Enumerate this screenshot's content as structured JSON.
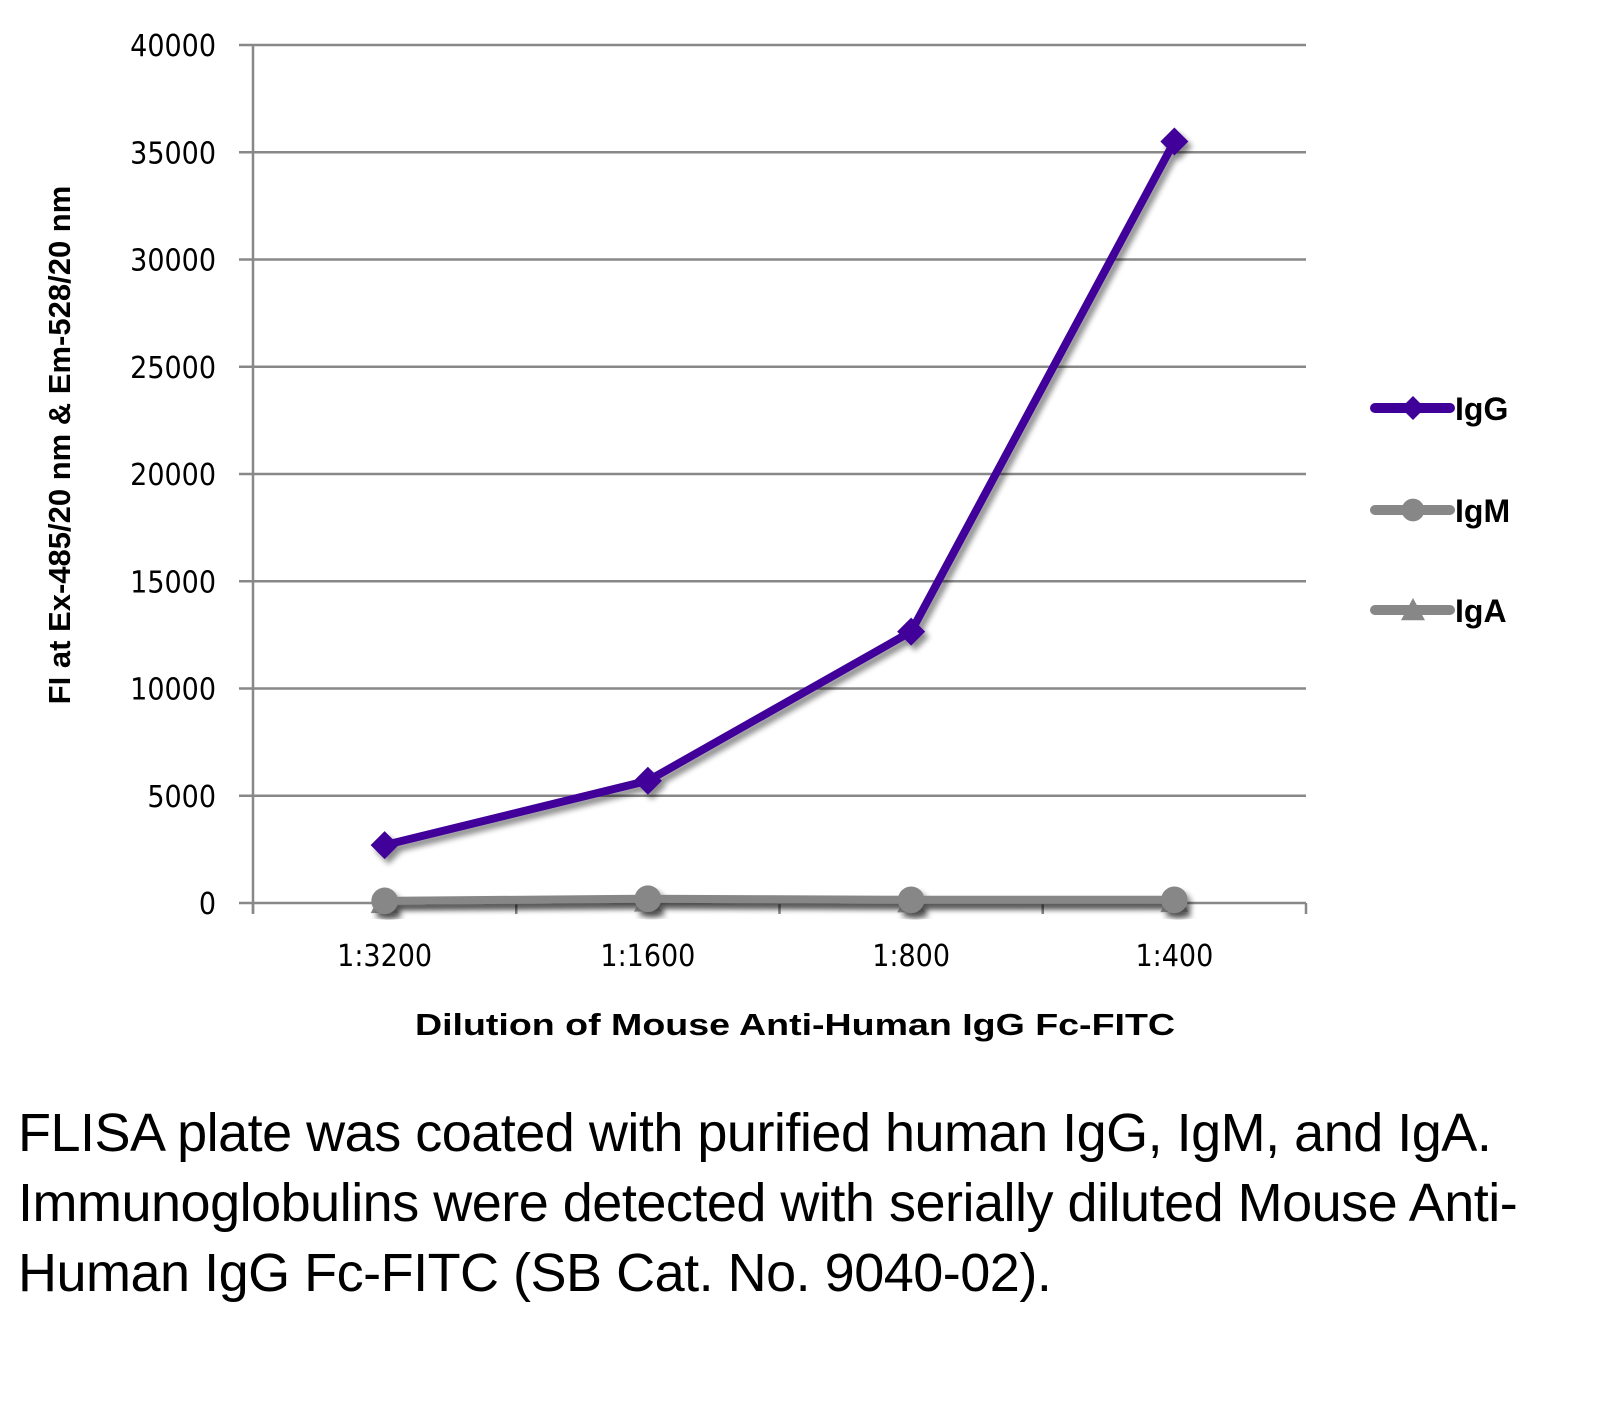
{
  "chart_data": {
    "type": "line",
    "title": "",
    "xlabel": "Dilution of Mouse Anti-Human IgG Fc-FITC",
    "ylabel": "FI at Ex-485/20 nm & Em-528/20 nm",
    "categories": [
      "1:3200",
      "1:1600",
      "1:800",
      "1:400"
    ],
    "ylim": [
      0,
      40000
    ],
    "yticks": [
      0,
      5000,
      10000,
      15000,
      20000,
      25000,
      30000,
      35000,
      40000
    ],
    "ytick_labels": [
      "0",
      "5000",
      "10000",
      "15000",
      "20000",
      "25000",
      "30000",
      "35000",
      "40000"
    ],
    "grid": true,
    "legend_position": "right",
    "series": [
      {
        "name": "IgG",
        "marker": "diamond",
        "color": "#3f0099",
        "values": [
          2700,
          5700,
          12650,
          35500
        ]
      },
      {
        "name": "IgM",
        "marker": "circle",
        "color": "#878787",
        "values": [
          100,
          200,
          150,
          150
        ]
      },
      {
        "name": "IgA",
        "marker": "triangle",
        "color": "#878787",
        "values": [
          80,
          150,
          120,
          130
        ]
      }
    ]
  },
  "caption": "FLISA plate was coated with purified human IgG, IgM, and IgA.  Immunoglobulins were detected with serially diluted Mouse Anti-Human IgG Fc-FITC (SB Cat. No. 9040-02)."
}
